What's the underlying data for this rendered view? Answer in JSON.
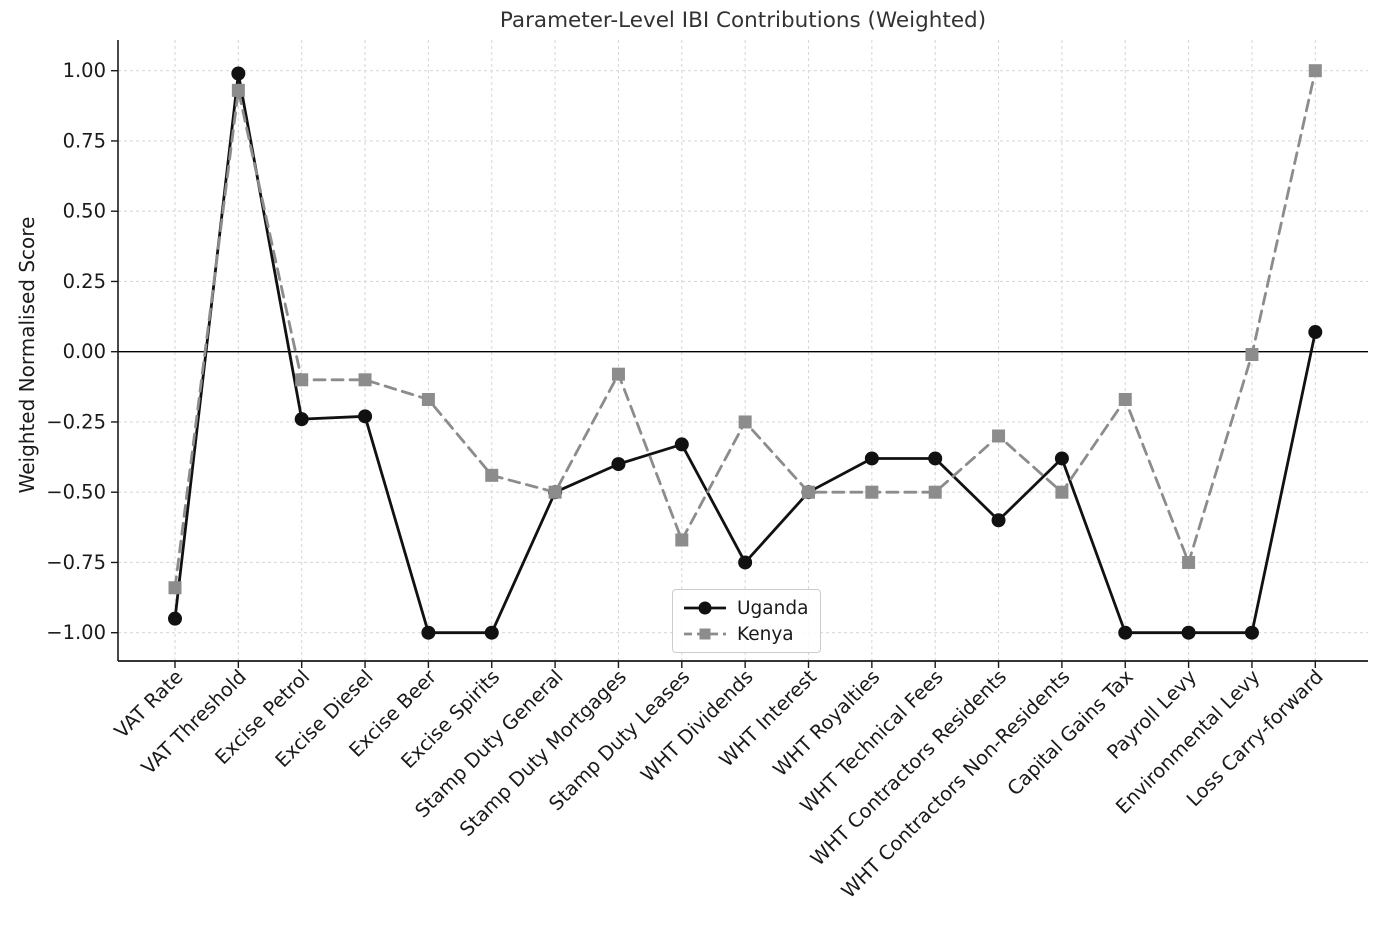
{
  "chart_data": {
    "type": "line",
    "title": "Parameter-Level IBI Contributions (Weighted)",
    "xlabel": "",
    "ylabel": "Weighted Normalised Score",
    "ylim": [
      -1.1,
      1.11
    ],
    "grid": "dashed both axes",
    "zero_line": true,
    "legend_position": "lower center",
    "yticks": [
      1.0,
      0.75,
      0.5,
      0.25,
      0.0,
      -0.25,
      -0.5,
      -0.75,
      -1.0
    ],
    "ytick_labels": [
      "1.00",
      "0.75",
      "0.50",
      "0.25",
      "0.00",
      "−0.25",
      "−0.50",
      "−0.75",
      "−1.00"
    ],
    "categories": [
      "VAT Rate",
      "VAT Threshold",
      "Excise Petrol",
      "Excise Diesel",
      "Excise Beer",
      "Excise Spirits",
      "Stamp Duty General",
      "Stamp Duty Mortgages",
      "Stamp Duty Leases",
      "WHT Dividends",
      "WHT Interest",
      "WHT Royalties",
      "WHT Technical Fees",
      "WHT Contractors Residents",
      "WHT Contractors Non-Residents",
      "Capital Gains Tax",
      "Payroll Levy",
      "Environmental Levy",
      "Loss Carry-forward"
    ],
    "series": [
      {
        "name": "Uganda",
        "color": "#111111",
        "line_style": "solid",
        "marker": "circle",
        "values": [
          -0.95,
          0.99,
          -0.24,
          -0.23,
          -1.0,
          -1.0,
          -0.5,
          -0.4,
          -0.33,
          -0.75,
          -0.5,
          -0.38,
          -0.38,
          -0.6,
          -0.38,
          -1.0,
          -1.0,
          -1.0,
          0.07
        ]
      },
      {
        "name": "Kenya",
        "color": "#8c8c8c",
        "line_style": "dashed",
        "marker": "square",
        "values": [
          -0.84,
          0.93,
          -0.1,
          -0.1,
          -0.17,
          -0.44,
          -0.5,
          -0.08,
          -0.67,
          -0.25,
          -0.5,
          -0.5,
          -0.5,
          -0.3,
          -0.5,
          -0.17,
          -0.75,
          -0.01,
          1.0
        ]
      }
    ],
    "colors": {
      "grid": "#d9d9d9",
      "spine": "#1a1a1a",
      "zero_line": "#000000",
      "text": "#1a1a1a",
      "title_text": "#333333"
    }
  }
}
